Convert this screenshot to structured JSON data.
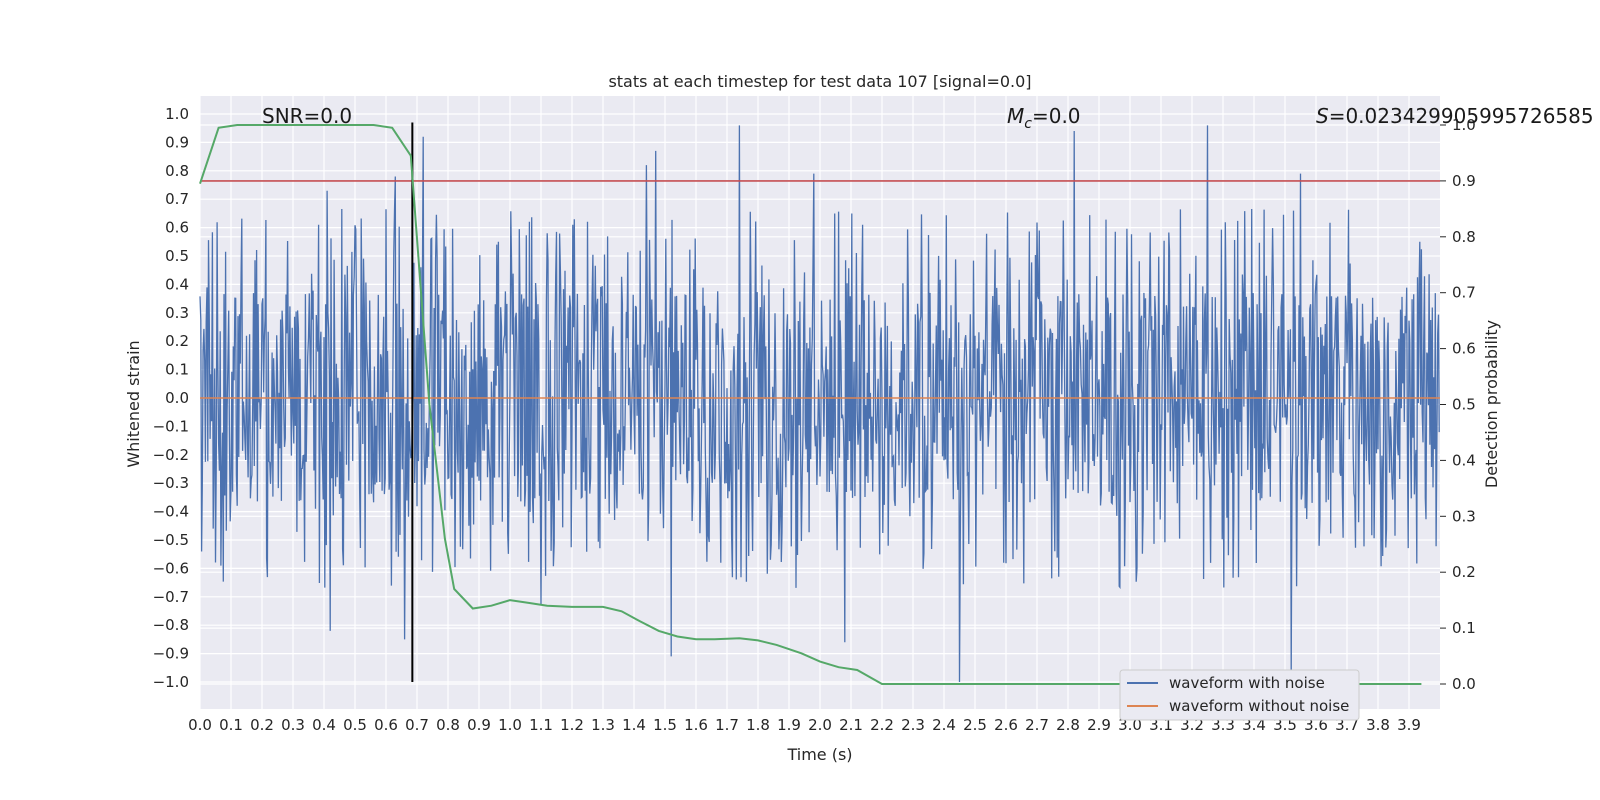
{
  "chart_data": {
    "type": "line",
    "title": "stats at each timestep for test data 107 [signal=0.0]",
    "xlabel": "Time (s)",
    "ylabel": "Whitened strain",
    "y2label": "Detection probability",
    "xlim": [
      0.0,
      4.0
    ],
    "ylim": [
      -1.1,
      1.06
    ],
    "y2lim": [
      -0.045,
      1.05
    ],
    "xticks": [
      "0.0",
      "0.1",
      "0.2",
      "0.3",
      "0.4",
      "0.5",
      "0.6",
      "0.7",
      "0.8",
      "0.9",
      "1.0",
      "1.1",
      "1.2",
      "1.3",
      "1.4",
      "1.5",
      "1.6",
      "1.7",
      "1.8",
      "1.9",
      "2.0",
      "2.1",
      "2.2",
      "2.3",
      "2.4",
      "2.5",
      "2.6",
      "2.7",
      "2.8",
      "2.9",
      "3.0",
      "3.1",
      "3.2",
      "3.3",
      "3.4",
      "3.5",
      "3.6",
      "3.7",
      "3.8",
      "3.9"
    ],
    "yticks": [
      "1.0",
      "0.9",
      "0.8",
      "0.7",
      "0.6",
      "0.5",
      "0.4",
      "0.3",
      "0.2",
      "0.1",
      "0.0",
      "−0.1",
      "−0.2",
      "−0.3",
      "−0.4",
      "−0.5",
      "−0.6",
      "−0.7",
      "−0.8",
      "−0.9",
      "−1.0"
    ],
    "y2ticks": [
      "1.0",
      "0.9",
      "0.8",
      "0.7",
      "0.6",
      "0.5",
      "0.4",
      "0.3",
      "0.2",
      "0.1",
      "0.0"
    ],
    "annotations": {
      "snr": "SNR=0.0",
      "mc_symbol": "M",
      "mc_sub": "c",
      "mc_value": "=0.0",
      "s_symbol": "S",
      "s_value": "=0.023429905995726585"
    },
    "threshold_line": {
      "y2": 0.9,
      "color": "#c44e52"
    },
    "marker_line": {
      "x": 0.685,
      "y_from": -1.0,
      "y_to": 0.97,
      "color": "#000000"
    },
    "series": [
      {
        "name": "waveform with noise",
        "color": "#4c72b0",
        "kind": "noise",
        "typical_amplitude": 0.37,
        "peaks": [
          {
            "x": 0.42,
            "y": -0.82
          },
          {
            "x": 0.41,
            "y": 0.73
          },
          {
            "x": 0.63,
            "y": 0.78
          },
          {
            "x": 0.66,
            "y": -0.85
          },
          {
            "x": 0.72,
            "y": 0.92
          },
          {
            "x": 1.1,
            "y": -0.73
          },
          {
            "x": 1.44,
            "y": 0.82
          },
          {
            "x": 1.47,
            "y": 0.87
          },
          {
            "x": 1.52,
            "y": -0.91
          },
          {
            "x": 1.74,
            "y": 0.96
          },
          {
            "x": 1.98,
            "y": 0.79
          },
          {
            "x": 2.08,
            "y": -0.86
          },
          {
            "x": 2.45,
            "y": -1.0
          },
          {
            "x": 2.82,
            "y": 0.94
          },
          {
            "x": 3.25,
            "y": 0.96
          },
          {
            "x": 3.52,
            "y": -0.97
          },
          {
            "x": 3.55,
            "y": 0.79
          }
        ]
      },
      {
        "name": "waveform without noise",
        "color": "#dd8452",
        "kind": "flat",
        "y": 0.0
      },
      {
        "name": "detection probability",
        "color": "#55a868",
        "axis": "right",
        "x": [
          0.0,
          0.06,
          0.12,
          0.2,
          0.3,
          0.4,
          0.5,
          0.56,
          0.62,
          0.68,
          0.74,
          0.79,
          0.82,
          0.88,
          0.94,
          1.0,
          1.06,
          1.12,
          1.2,
          1.3,
          1.36,
          1.42,
          1.48,
          1.54,
          1.6,
          1.66,
          1.74,
          1.8,
          1.86,
          1.94,
          2.0,
          2.06,
          2.12,
          2.2,
          2.3,
          2.4,
          2.5,
          2.6,
          2.8,
          3.0,
          3.2,
          3.4,
          3.6,
          3.8,
          3.94
        ],
        "y": [
          0.895,
          0.995,
          1.0,
          1.0,
          1.0,
          1.0,
          1.0,
          1.0,
          0.995,
          0.945,
          0.5,
          0.26,
          0.17,
          0.135,
          0.14,
          0.15,
          0.145,
          0.14,
          0.138,
          0.138,
          0.13,
          0.112,
          0.095,
          0.085,
          0.08,
          0.08,
          0.082,
          0.078,
          0.07,
          0.055,
          0.04,
          0.03,
          0.025,
          0.0,
          0.0,
          0.0,
          0.0,
          0.0,
          0.0,
          0.0,
          0.0,
          0.0,
          0.0,
          0.0,
          0.0
        ]
      }
    ],
    "legend": {
      "position": "lower-right",
      "entries": [
        {
          "label": "waveform with noise",
          "color": "#4c72b0"
        },
        {
          "label": "waveform without noise",
          "color": "#dd8452"
        }
      ]
    },
    "colors": {
      "plot_bg": "#eaeaf2",
      "grid": "#ffffff"
    }
  }
}
